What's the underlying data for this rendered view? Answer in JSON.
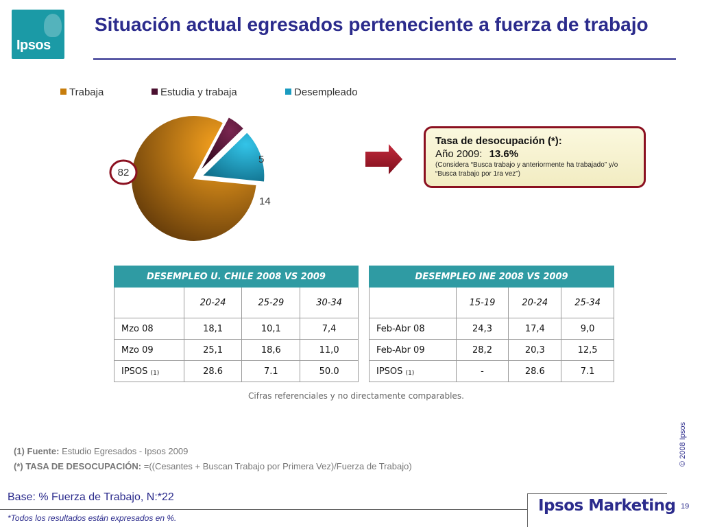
{
  "logo": {
    "text": "Ipsos"
  },
  "title": "Situación actual egresados perteneciente a fuerza de trabajo",
  "chart_data": {
    "type": "pie",
    "series": [
      {
        "name": "Trabaja",
        "value": 82,
        "color": "#c77d0c",
        "label": "82"
      },
      {
        "name": "Estudia y trabaja",
        "value": 5,
        "color": "#4a1030",
        "label": "5"
      },
      {
        "name": "Desempleado",
        "value": 14,
        "color": "#1a9bc0",
        "label": "14"
      }
    ],
    "legend_position": "top"
  },
  "tasa": {
    "title": "Tasa de desocupación (*):",
    "year_label": "Año 2009:",
    "value": "13.6%",
    "note": "(Considera “Busca trabajo y anteriormente ha trabajado” y/o “Busca trabajo por 1ra vez”)"
  },
  "table_uchile": {
    "title": "DESEMPLEO U. CHILE 2008 VS 2009",
    "columns": [
      "20-24",
      "25-29",
      "30-34"
    ],
    "rows": [
      {
        "label": "Mzo 08",
        "values": [
          "18,1",
          "10,1",
          "7,4"
        ]
      },
      {
        "label": "Mzo 09",
        "values": [
          "25,1",
          "18,6",
          "11,0"
        ]
      },
      {
        "label": "IPSOS",
        "sub": "(1)",
        "values": [
          "28.6",
          "7.1",
          "50.0"
        ]
      }
    ]
  },
  "table_ine": {
    "title": "DESEMPLEO INE 2008 VS 2009",
    "columns": [
      "15-19",
      "20-24",
      "25-34"
    ],
    "rows": [
      {
        "label": "Feb-Abr 08",
        "values": [
          "24,3",
          "17,4",
          "9,0"
        ]
      },
      {
        "label": "Feb-Abr 09",
        "values": [
          "28,2",
          "20,3",
          "12,5"
        ]
      },
      {
        "label": "IPSOS",
        "sub": "(1)",
        "values": [
          "-",
          "28.6",
          "7.1"
        ]
      }
    ]
  },
  "note_cifras": "Cifras referenciales y no directamente comparables.",
  "fuente": {
    "label": "(1) Fuente:",
    "text": "Estudio Egresados -  Ipsos 2009"
  },
  "tasa_def": {
    "label": "(*) TASA DE DESOCUPACIÓN:",
    "text": "=((Cesantes + Buscan Trabajo por Primera Vez)/Fuerza de Trabajo)"
  },
  "copyright": "© 2008 Ipsos",
  "base": "Base: % Fuerza de Trabajo, N:*22",
  "footnote": "*Todos los resultados están expresados en %.",
  "brand": "Ipsos Marketing",
  "page_number": "19"
}
